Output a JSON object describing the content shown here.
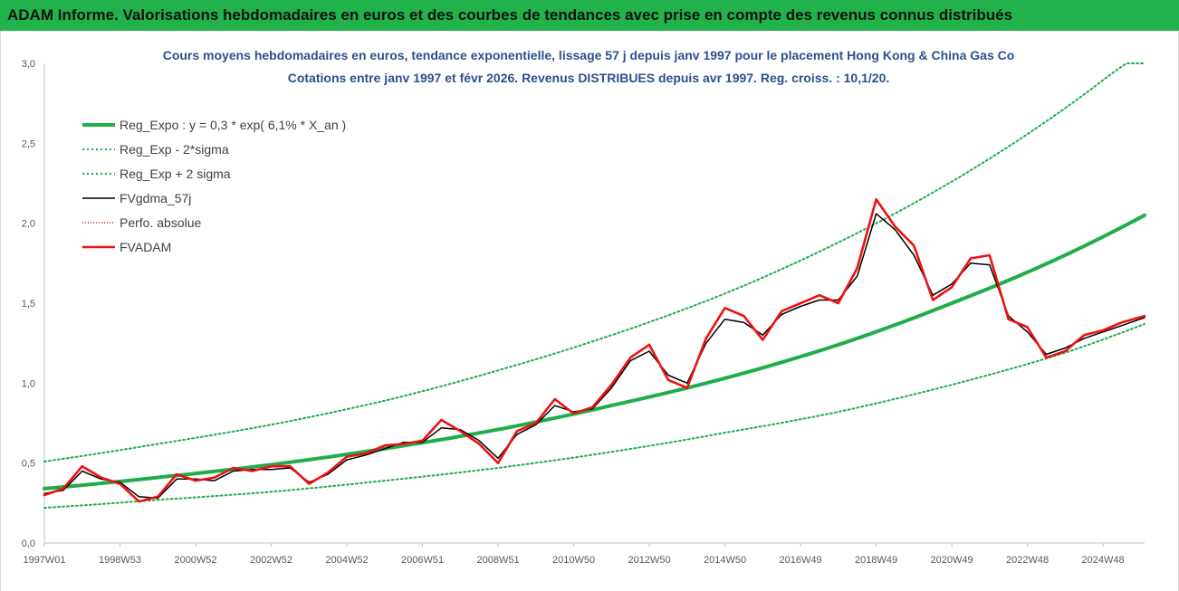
{
  "header": {
    "title": "ADAM Informe. Valorisations hebdomadaires en euros et des courbes de tendances avec prise en compte des revenus connus distribués"
  },
  "colors": {
    "header_bg": "#21b24c",
    "reg_green": "#1fad4c",
    "fv_black": "#000000",
    "adam_red": "#ee1111",
    "title_blue": "#2f4f8f"
  },
  "chart_data": {
    "type": "line",
    "title_line1": "Cours moyens hebdomadaires en euros, tendance exponentielle, lissage 57 j depuis janv 1997 pour le placement Hong Kong & China Gas Co",
    "title_line2": "Cotations entre janv 1997 et févr 2026. Revenus DISTRIBUES depuis avr 1997. Reg. croiss. : 10,1/20.",
    "xlabel": "",
    "ylabel": "",
    "ylim": [
      0,
      3
    ],
    "xlim": [
      1997.0,
      2026.1
    ],
    "y_ticks": [
      "0,0",
      "0,5",
      "1,0",
      "1,5",
      "2,0",
      "2,5",
      "3,0"
    ],
    "x_ticks": [
      {
        "label": "1997W01",
        "x": 1997.0
      },
      {
        "label": "1998W53",
        "x": 1999.0
      },
      {
        "label": "2000W52",
        "x": 2001.0
      },
      {
        "label": "2002W52",
        "x": 2003.0
      },
      {
        "label": "2004W52",
        "x": 2005.0
      },
      {
        "label": "2006W51",
        "x": 2007.0
      },
      {
        "label": "2008W51",
        "x": 2009.0
      },
      {
        "label": "2010W50",
        "x": 2011.0
      },
      {
        "label": "2012W50",
        "x": 2013.0
      },
      {
        "label": "2014W50",
        "x": 2015.0
      },
      {
        "label": "2016W49",
        "x": 2017.0
      },
      {
        "label": "2018W49",
        "x": 2019.0
      },
      {
        "label": "2020W49",
        "x": 2021.0
      },
      {
        "label": "2022W48",
        "x": 2023.0
      },
      {
        "label": "2024W48",
        "x": 2025.0
      }
    ],
    "grid": false,
    "legend_position": "top-left",
    "legend": [
      {
        "name": "Reg_Expo : y = 0,3 * exp( 6,1% *  X_an )",
        "style": "solid-thick-green"
      },
      {
        "name": "Reg_Exp - 2*sigma",
        "style": "dotted-green"
      },
      {
        "name": "Reg_Exp + 2 sigma",
        "style": "dotted-green"
      },
      {
        "name": "FVgdma_57j",
        "style": "solid-black"
      },
      {
        "name": "Perfo. absolue",
        "style": "dotted-red"
      },
      {
        "name": "FVADAM",
        "style": "solid-thick-red"
      }
    ],
    "series": [
      {
        "name": "Reg_Expo : y = 0,3 * exp( 6,1% *  X_an )",
        "x": [
          1997.0,
          2000.0,
          2003.0,
          2006.0,
          2009.0,
          2012.0,
          2015.0,
          2018.0,
          2021.0,
          2024.0,
          2026.1
        ],
        "values": [
          0.34,
          0.41,
          0.49,
          0.59,
          0.71,
          0.86,
          1.03,
          1.24,
          1.5,
          1.8,
          2.05
        ]
      },
      {
        "name": "Reg_Exp - 2*sigma",
        "x": [
          1997.0,
          2000.0,
          2003.0,
          2006.0,
          2009.0,
          2012.0,
          2015.0,
          2018.0,
          2021.0,
          2024.0,
          2026.1
        ],
        "values": [
          0.22,
          0.27,
          0.32,
          0.39,
          0.47,
          0.57,
          0.69,
          0.82,
          0.99,
          1.19,
          1.37
        ]
      },
      {
        "name": "Reg_Exp + 2 sigma",
        "x": [
          1997.0,
          2000.0,
          2003.0,
          2006.0,
          2009.0,
          2012.0,
          2015.0,
          2018.0,
          2021.0,
          2024.0,
          2026.1
        ],
        "values": [
          0.51,
          0.62,
          0.74,
          0.89,
          1.08,
          1.3,
          1.56,
          1.88,
          2.26,
          2.72,
          3.1
        ]
      },
      {
        "name": "FVgdma_57j",
        "x": [
          1997.0,
          1997.5,
          1998.0,
          1998.5,
          1999.0,
          1999.5,
          2000.0,
          2000.5,
          2001.0,
          2001.5,
          2002.0,
          2002.5,
          2003.0,
          2003.5,
          2004.0,
          2004.5,
          2005.0,
          2005.5,
          2006.0,
          2006.5,
          2007.0,
          2007.5,
          2008.0,
          2008.5,
          2009.0,
          2009.5,
          2010.0,
          2010.5,
          2011.0,
          2011.5,
          2012.0,
          2012.5,
          2013.0,
          2013.5,
          2014.0,
          2014.5,
          2015.0,
          2015.5,
          2016.0,
          2016.5,
          2017.0,
          2017.5,
          2018.0,
          2018.5,
          2019.0,
          2019.5,
          2020.0,
          2020.5,
          2021.0,
          2021.5,
          2022.0,
          2022.5,
          2023.0,
          2023.5,
          2024.0,
          2024.5,
          2025.0,
          2025.5,
          2026.1
        ],
        "values": [
          0.31,
          0.33,
          0.45,
          0.4,
          0.38,
          0.29,
          0.28,
          0.4,
          0.4,
          0.39,
          0.45,
          0.46,
          0.46,
          0.47,
          0.38,
          0.43,
          0.52,
          0.55,
          0.59,
          0.63,
          0.63,
          0.72,
          0.71,
          0.64,
          0.53,
          0.68,
          0.74,
          0.86,
          0.82,
          0.84,
          0.97,
          1.14,
          1.2,
          1.05,
          1.0,
          1.25,
          1.4,
          1.38,
          1.3,
          1.43,
          1.48,
          1.52,
          1.52,
          1.67,
          2.06,
          1.96,
          1.8,
          1.55,
          1.62,
          1.75,
          1.74,
          1.42,
          1.32,
          1.18,
          1.22,
          1.28,
          1.32,
          1.36,
          1.41
        ]
      },
      {
        "name": "FVADAM",
        "x": [
          1997.0,
          1997.5,
          1998.0,
          1998.5,
          1999.0,
          1999.5,
          2000.0,
          2000.5,
          2001.0,
          2001.5,
          2002.0,
          2002.5,
          2003.0,
          2003.5,
          2004.0,
          2004.5,
          2005.0,
          2005.5,
          2006.0,
          2006.5,
          2007.0,
          2007.5,
          2008.0,
          2008.5,
          2009.0,
          2009.5,
          2010.0,
          2010.5,
          2011.0,
          2011.5,
          2012.0,
          2012.5,
          2013.0,
          2013.5,
          2014.0,
          2014.5,
          2015.0,
          2015.5,
          2016.0,
          2016.5,
          2017.0,
          2017.5,
          2018.0,
          2018.5,
          2019.0,
          2019.5,
          2020.0,
          2020.5,
          2021.0,
          2021.5,
          2022.0,
          2022.5,
          2023.0,
          2023.5,
          2024.0,
          2024.5,
          2025.0,
          2025.5,
          2026.1
        ],
        "values": [
          0.3,
          0.34,
          0.48,
          0.41,
          0.37,
          0.26,
          0.29,
          0.43,
          0.39,
          0.41,
          0.47,
          0.45,
          0.48,
          0.48,
          0.37,
          0.44,
          0.54,
          0.56,
          0.61,
          0.62,
          0.64,
          0.77,
          0.7,
          0.62,
          0.5,
          0.7,
          0.75,
          0.9,
          0.81,
          0.85,
          0.99,
          1.16,
          1.24,
          1.02,
          0.97,
          1.28,
          1.47,
          1.42,
          1.27,
          1.45,
          1.5,
          1.55,
          1.5,
          1.72,
          2.15,
          1.98,
          1.86,
          1.52,
          1.6,
          1.78,
          1.8,
          1.4,
          1.35,
          1.16,
          1.2,
          1.3,
          1.33,
          1.38,
          1.42
        ]
      }
    ]
  }
}
